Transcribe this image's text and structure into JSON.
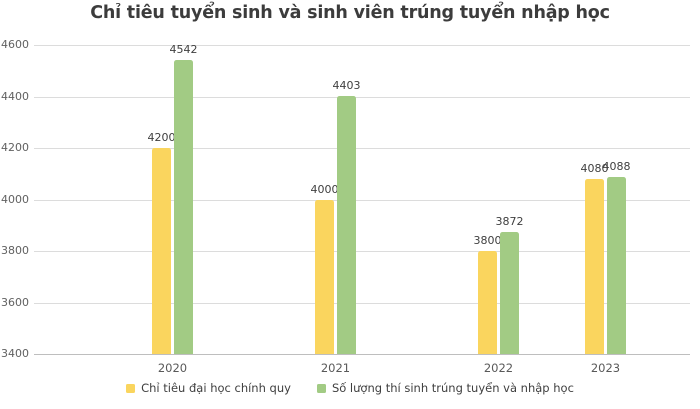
{
  "chart_data": {
    "type": "bar",
    "title": "Chỉ tiêu tuyển sinh và sinh viên trúng tuyển nhập học",
    "categories": [
      "2020",
      "2021",
      "2022",
      "2023"
    ],
    "series": [
      {
        "name": "Chỉ tiêu đại học chính quy",
        "color": "#FAD55E",
        "values": [
          4200,
          4000,
          3800,
          4080
        ]
      },
      {
        "name": "Số lượng thí sinh trúng tuyển và nhập học",
        "color": "#A2CB84",
        "values": [
          4542,
          4403,
          3872,
          4088
        ]
      }
    ],
    "y_ticks": [
      4600,
      4400,
      4200,
      4000,
      3800,
      3600,
      3400
    ],
    "ylim": [
      3400,
      4600
    ],
    "grid": true,
    "data_labels": true,
    "legend_position": "bottom",
    "colors": {
      "title_text": "#3c3c3c",
      "axis_text": "#595959",
      "gridline": "#dcdcdc",
      "background": "#ffffff"
    }
  }
}
